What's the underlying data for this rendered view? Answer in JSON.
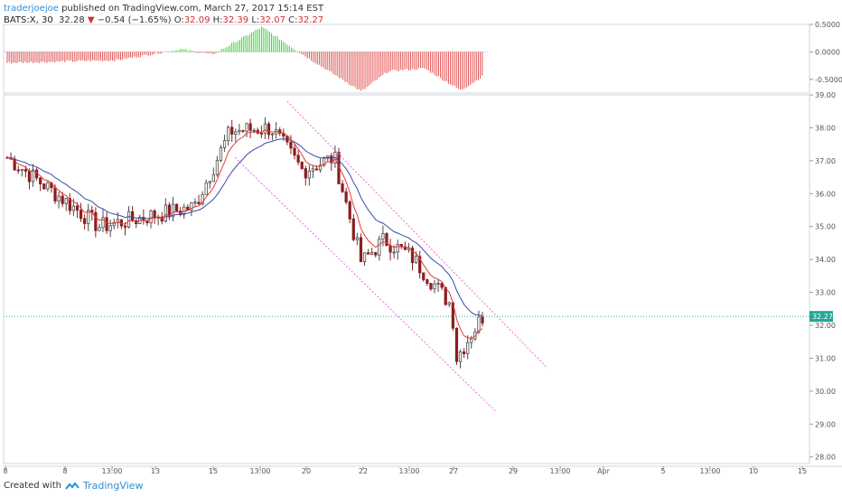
{
  "header": {
    "author": "traderjoejoe",
    "published": "published on TradingView.com, March 27, 2017 15:14 EST",
    "symbol": "BATS:X, 30",
    "last": "32.28",
    "change": "−0.54 (−1.65%)",
    "o_label": "O:",
    "o": "32.09",
    "h_label": "H:",
    "h": "32.39",
    "l_label": "L:",
    "l": "32.07",
    "c_label": "C:",
    "c": "32.27"
  },
  "footer": {
    "created_with": "Created with",
    "brand": "TradingView"
  },
  "colors": {
    "up_candle": "#4a4a4a",
    "down_candle": "#8b1f1f",
    "ema_fast": "#e53935",
    "ema_slow": "#3949ab",
    "channel": "#f06bd3",
    "osc_pos": "#3ad23a",
    "osc_neg": "#e05050",
    "price_tag": "#26a69a"
  },
  "chart_data": [
    {
      "type": "candlestick",
      "title": "",
      "y_ticks": [
        "39.00",
        "38.00",
        "37.00",
        "36.00",
        "35.00",
        "34.00",
        "33.00",
        "32.00",
        "31.00",
        "30.00",
        "29.00",
        "28.00"
      ],
      "ylim": [
        27.8,
        39.0
      ],
      "x_ticks": [
        "8",
        "8",
        "13:00",
        "13",
        "15",
        "13:00",
        "20",
        "22",
        "13:00",
        "27",
        "29",
        "13:00",
        "Apr",
        "5",
        "13:00",
        "10",
        "15"
      ],
      "last_price_label": "32.27",
      "last_price": 32.27,
      "key_points": [
        {
          "x": "8 (start)",
          "close": 37.1
        },
        {
          "x": "13",
          "close": 35.0
        },
        {
          "x": "15",
          "close": 35.6
        },
        {
          "x": "16",
          "close": 37.9
        },
        {
          "x": "17 13:00",
          "close": 38.0
        },
        {
          "x": "20",
          "close": 36.7
        },
        {
          "x": "21",
          "close": 37.1
        },
        {
          "x": "22",
          "close": 33.9
        },
        {
          "x": "23",
          "close": 34.6
        },
        {
          "x": "24",
          "close": 34.1
        },
        {
          "x": "24 late",
          "close": 32.6
        },
        {
          "x": "27",
          "close": 31.0
        },
        {
          "x": "27 close",
          "close": 32.27
        }
      ],
      "series": [
        {
          "name": "",
          "role": "fast moving average",
          "color": "#e53935"
        },
        {
          "name": "",
          "role": "slow moving average",
          "color": "#3949ab"
        }
      ],
      "channel_lines": 2
    },
    {
      "type": "histogram",
      "title": "",
      "y_ticks": [
        "0.5000",
        "0.0000",
        "-0.5000"
      ],
      "ylim": [
        -0.75,
        0.5
      ],
      "profile": [
        {
          "x": "8",
          "value": -0.2
        },
        {
          "x": "13",
          "value": -0.15
        },
        {
          "x": "15",
          "value": 0.05
        },
        {
          "x": "16",
          "value": -0.05
        },
        {
          "x": "17",
          "value": 0.45
        },
        {
          "x": "20",
          "value": -0.1
        },
        {
          "x": "22",
          "value": -0.72
        },
        {
          "x": "23",
          "value": -0.35
        },
        {
          "x": "24",
          "value": -0.3
        },
        {
          "x": "27",
          "value": -0.7
        },
        {
          "x": "27 close",
          "value": -0.45
        }
      ]
    }
  ]
}
